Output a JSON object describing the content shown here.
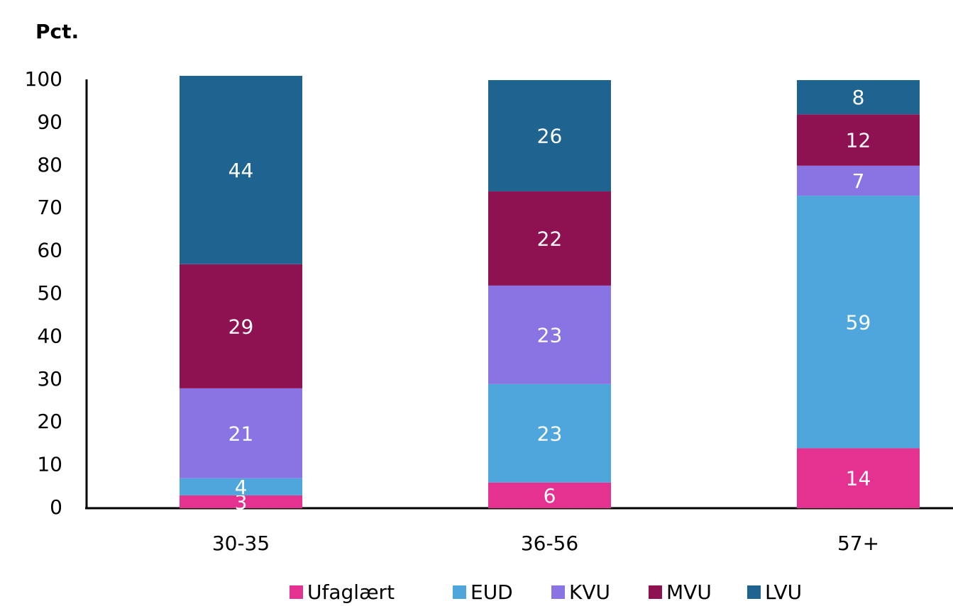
{
  "chart_data": {
    "type": "stacked_bar",
    "title": "Pct.",
    "categories": [
      "30-35",
      "36-56",
      "57+"
    ],
    "series": [
      {
        "name": "Ufaglært",
        "color": "#e5318f",
        "values": [
          3,
          6,
          14
        ]
      },
      {
        "name": "EUD",
        "color": "#4ea6dc",
        "values": [
          4,
          23,
          59
        ]
      },
      {
        "name": "KVU",
        "color": "#8a73e2",
        "values": [
          21,
          23,
          7
        ]
      },
      {
        "name": "MVU",
        "color": "#8e1152",
        "values": [
          29,
          22,
          12
        ]
      },
      {
        "name": "LVU",
        "color": "#1f6491",
        "values": [
          44,
          26,
          8
        ]
      }
    ],
    "ylim": [
      0,
      100
    ],
    "yticks": [
      0,
      10,
      20,
      30,
      40,
      50,
      60,
      70,
      80,
      90,
      100
    ],
    "grid": false,
    "legend": "bottom"
  }
}
